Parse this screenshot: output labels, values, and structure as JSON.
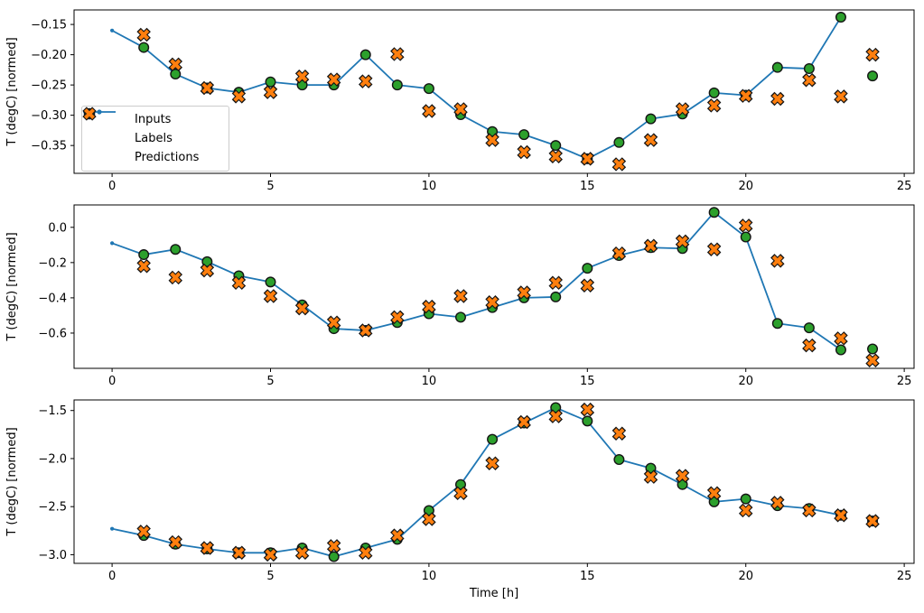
{
  "figure": {
    "background": "#ffffff",
    "colors": {
      "inputs_line": "#1f77b4",
      "labels_marker": "#2ca02c",
      "predictions_marker": "#ff7f0e",
      "marker_edge": "#141414",
      "spine": "#000000",
      "legend_border": "#cccccc"
    },
    "legend": {
      "subplot": 1,
      "position": "left",
      "items": [
        {
          "label": "Inputs",
          "icon": "inputs-line-icon"
        },
        {
          "label": "Labels",
          "icon": "labels-circle-icon"
        },
        {
          "label": "Predictions",
          "icon": "predictions-x-icon"
        }
      ]
    }
  },
  "chart_data": [
    {
      "type": "line",
      "title": "",
      "xlabel": "",
      "ylabel": "T (degC) [normed]",
      "xlim": [
        -1.2,
        25.31
      ],
      "ylim": [
        -0.396,
        -0.126
      ],
      "xticks": [
        0,
        5,
        10,
        15,
        20,
        25
      ],
      "yticks": [
        -0.15,
        -0.2,
        -0.25,
        -0.3,
        -0.35
      ],
      "ytick_decimals": 2,
      "grid": false,
      "legend": true,
      "series": [
        {
          "name": "Inputs",
          "type": "line",
          "color": "#1f77b4",
          "x": [
            0,
            1,
            2,
            3,
            4,
            5,
            6,
            7,
            8,
            9,
            10,
            11,
            12,
            13,
            14,
            15,
            16,
            17,
            18,
            19,
            20,
            21,
            22,
            23
          ],
          "y": [
            -0.16,
            -0.188,
            -0.232,
            -0.255,
            -0.262,
            -0.245,
            -0.25,
            -0.25,
            -0.2,
            -0.25,
            -0.256,
            -0.299,
            -0.327,
            -0.332,
            -0.35,
            -0.372,
            -0.345,
            -0.306,
            -0.298,
            -0.263,
            -0.267,
            -0.221,
            -0.223,
            -0.138
          ]
        },
        {
          "name": "Labels",
          "type": "scatter-circle",
          "color": "#2ca02c",
          "edge": "#141414",
          "x": [
            1,
            2,
            3,
            4,
            5,
            6,
            7,
            8,
            9,
            10,
            11,
            12,
            13,
            14,
            15,
            16,
            17,
            18,
            19,
            20,
            21,
            22,
            23,
            24
          ],
          "y": [
            -0.188,
            -0.232,
            -0.255,
            -0.262,
            -0.245,
            -0.25,
            -0.25,
            -0.2,
            -0.25,
            -0.256,
            -0.299,
            -0.327,
            -0.332,
            -0.35,
            -0.372,
            -0.345,
            -0.306,
            -0.298,
            -0.263,
            -0.267,
            -0.221,
            -0.223,
            -0.138,
            -0.235
          ]
        },
        {
          "name": "Predictions",
          "type": "scatter-x",
          "color": "#ff7f0e",
          "edge": "#141414",
          "x": [
            1,
            2,
            3,
            4,
            5,
            6,
            7,
            8,
            9,
            10,
            11,
            12,
            13,
            14,
            15,
            16,
            17,
            18,
            19,
            20,
            21,
            22,
            23,
            24
          ],
          "y": [
            -0.167,
            -0.216,
            -0.255,
            -0.269,
            -0.262,
            -0.236,
            -0.241,
            -0.244,
            -0.199,
            -0.293,
            -0.29,
            -0.341,
            -0.361,
            -0.368,
            -0.372,
            -0.381,
            -0.341,
            -0.29,
            -0.284,
            -0.268,
            -0.273,
            -0.242,
            -0.269,
            -0.2
          ]
        }
      ]
    },
    {
      "type": "line",
      "title": "",
      "xlabel": "",
      "ylabel": "T (degC) [normed]",
      "xlim": [
        -1.2,
        25.31
      ],
      "ylim": [
        -0.8,
        0.127
      ],
      "xticks": [
        0,
        5,
        10,
        15,
        20,
        25
      ],
      "yticks": [
        0.0,
        -0.2,
        -0.4,
        -0.6
      ],
      "ytick_decimals": 1,
      "grid": false,
      "legend": false,
      "series": [
        {
          "name": "Inputs",
          "type": "line",
          "color": "#1f77b4",
          "x": [
            0,
            1,
            2,
            3,
            4,
            5,
            6,
            7,
            8,
            9,
            10,
            11,
            12,
            13,
            14,
            15,
            16,
            17,
            18,
            19,
            20,
            21,
            22,
            23
          ],
          "y": [
            -0.09,
            -0.155,
            -0.125,
            -0.195,
            -0.275,
            -0.31,
            -0.44,
            -0.575,
            -0.585,
            -0.54,
            -0.49,
            -0.51,
            -0.455,
            -0.4,
            -0.395,
            -0.232,
            -0.16,
            -0.115,
            -0.12,
            0.085,
            -0.055,
            -0.545,
            -0.57,
            -0.695
          ]
        },
        {
          "name": "Labels",
          "type": "scatter-circle",
          "color": "#2ca02c",
          "edge": "#141414",
          "x": [
            1,
            2,
            3,
            4,
            5,
            6,
            7,
            8,
            9,
            10,
            11,
            12,
            13,
            14,
            15,
            16,
            17,
            18,
            19,
            20,
            21,
            22,
            23,
            24
          ],
          "y": [
            -0.155,
            -0.125,
            -0.195,
            -0.275,
            -0.31,
            -0.44,
            -0.575,
            -0.585,
            -0.54,
            -0.49,
            -0.51,
            -0.455,
            -0.4,
            -0.395,
            -0.232,
            -0.16,
            -0.115,
            -0.12,
            0.085,
            -0.055,
            -0.545,
            -0.57,
            -0.695,
            -0.69
          ]
        },
        {
          "name": "Predictions",
          "type": "scatter-x",
          "color": "#ff7f0e",
          "edge": "#141414",
          "x": [
            1,
            2,
            3,
            4,
            5,
            6,
            7,
            8,
            9,
            10,
            11,
            12,
            13,
            14,
            15,
            16,
            17,
            18,
            19,
            20,
            21,
            22,
            23,
            24
          ],
          "y": [
            -0.22,
            -0.285,
            -0.245,
            -0.315,
            -0.39,
            -0.46,
            -0.54,
            -0.585,
            -0.51,
            -0.45,
            -0.39,
            -0.425,
            -0.37,
            -0.315,
            -0.33,
            -0.148,
            -0.105,
            -0.08,
            -0.125,
            0.01,
            -0.19,
            -0.67,
            -0.63,
            -0.755
          ]
        }
      ]
    },
    {
      "type": "line",
      "title": "",
      "xlabel": "Time [h]",
      "ylabel": "T (degC) [normed]",
      "xlim": [
        -1.2,
        25.31
      ],
      "ylim": [
        -3.09,
        -1.39
      ],
      "xticks": [
        0,
        5,
        10,
        15,
        20,
        25
      ],
      "yticks": [
        -1.5,
        -2.0,
        -2.5,
        -3.0
      ],
      "ytick_decimals": 1,
      "grid": false,
      "legend": false,
      "series": [
        {
          "name": "Inputs",
          "type": "line",
          "color": "#1f77b4",
          "x": [
            0,
            1,
            2,
            3,
            4,
            5,
            6,
            7,
            8,
            9,
            10,
            11,
            12,
            13,
            14,
            15,
            16,
            17,
            18,
            19,
            20,
            21,
            22,
            23
          ],
          "y": [
            -2.73,
            -2.8,
            -2.89,
            -2.94,
            -2.98,
            -2.98,
            -2.93,
            -3.02,
            -2.93,
            -2.84,
            -2.54,
            -2.27,
            -1.8,
            -1.63,
            -1.47,
            -1.61,
            -2.01,
            -2.1,
            -2.27,
            -2.45,
            -2.42,
            -2.49,
            -2.52,
            -2.59
          ]
        },
        {
          "name": "Labels",
          "type": "scatter-circle",
          "color": "#2ca02c",
          "edge": "#141414",
          "x": [
            1,
            2,
            3,
            4,
            5,
            6,
            7,
            8,
            9,
            10,
            11,
            12,
            13,
            14,
            15,
            16,
            17,
            18,
            19,
            20,
            21,
            22,
            23,
            24
          ],
          "y": [
            -2.8,
            -2.89,
            -2.94,
            -2.98,
            -2.98,
            -2.93,
            -3.02,
            -2.93,
            -2.84,
            -2.54,
            -2.27,
            -1.8,
            -1.63,
            -1.47,
            -1.61,
            -2.01,
            -2.1,
            -2.27,
            -2.45,
            -2.42,
            -2.49,
            -2.52,
            -2.59,
            -2.65
          ]
        },
        {
          "name": "Predictions",
          "type": "scatter-x",
          "color": "#ff7f0e",
          "edge": "#141414",
          "x": [
            1,
            2,
            3,
            4,
            5,
            6,
            7,
            8,
            9,
            10,
            11,
            12,
            13,
            14,
            15,
            16,
            17,
            18,
            19,
            20,
            21,
            22,
            23,
            24
          ],
          "y": [
            -2.76,
            -2.87,
            -2.93,
            -2.98,
            -3.0,
            -2.98,
            -2.91,
            -2.98,
            -2.8,
            -2.63,
            -2.36,
            -2.05,
            -1.62,
            -1.56,
            -1.49,
            -1.74,
            -2.19,
            -2.18,
            -2.36,
            -2.54,
            -2.46,
            -2.54,
            -2.59,
            -2.65
          ]
        }
      ]
    }
  ]
}
